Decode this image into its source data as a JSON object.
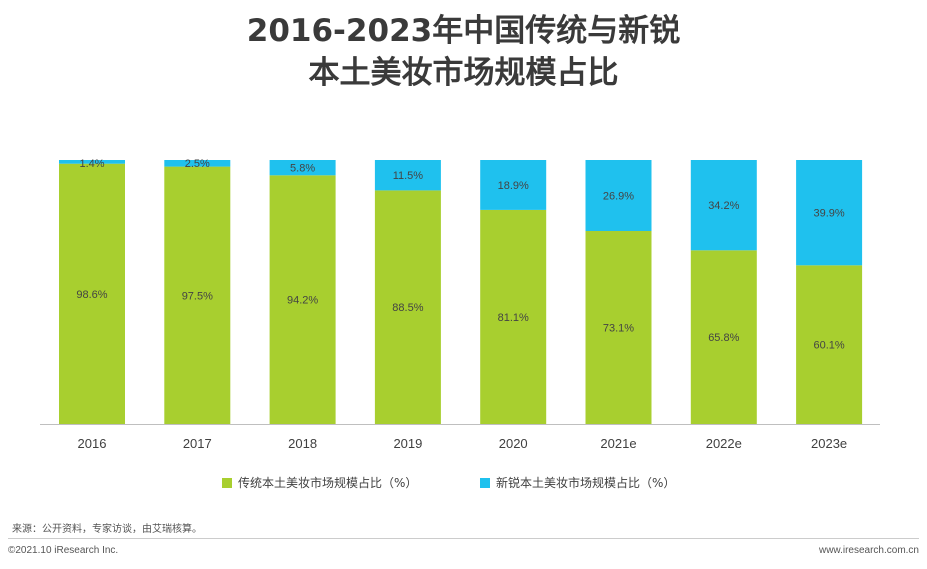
{
  "colors": {
    "traditional": "#a8cf2f",
    "emerging": "#1fc1ee",
    "title": "#3a3a3a",
    "axis": "#bfbfbf"
  },
  "chart_data": {
    "type": "bar",
    "stacked": true,
    "title_lines": [
      "2016-2023年中国传统与新锐",
      "本土美妆市场规模占比"
    ],
    "categories": [
      "2016",
      "2017",
      "2018",
      "2019",
      "2020",
      "2021e",
      "2022e",
      "2023e"
    ],
    "series": [
      {
        "name": "传统本土美妆市场规模占比（%）",
        "color_key": "traditional",
        "values": [
          98.6,
          97.5,
          94.2,
          88.5,
          81.1,
          73.1,
          65.8,
          60.1
        ]
      },
      {
        "name": "新锐本土美妆市场规模占比（%）",
        "color_key": "emerging",
        "values": [
          1.4,
          2.5,
          5.8,
          11.5,
          18.9,
          26.9,
          34.2,
          39.9
        ]
      }
    ],
    "ylim": [
      0,
      100
    ],
    "value_suffix": "%",
    "grid": false,
    "legend_position": "bottom"
  },
  "footer": {
    "source": "来源：公开资料，专家访谈，由艾瑞核算。",
    "copyright": "©2021.10 iResearch Inc.",
    "website": "www.iresearch.com.cn"
  }
}
